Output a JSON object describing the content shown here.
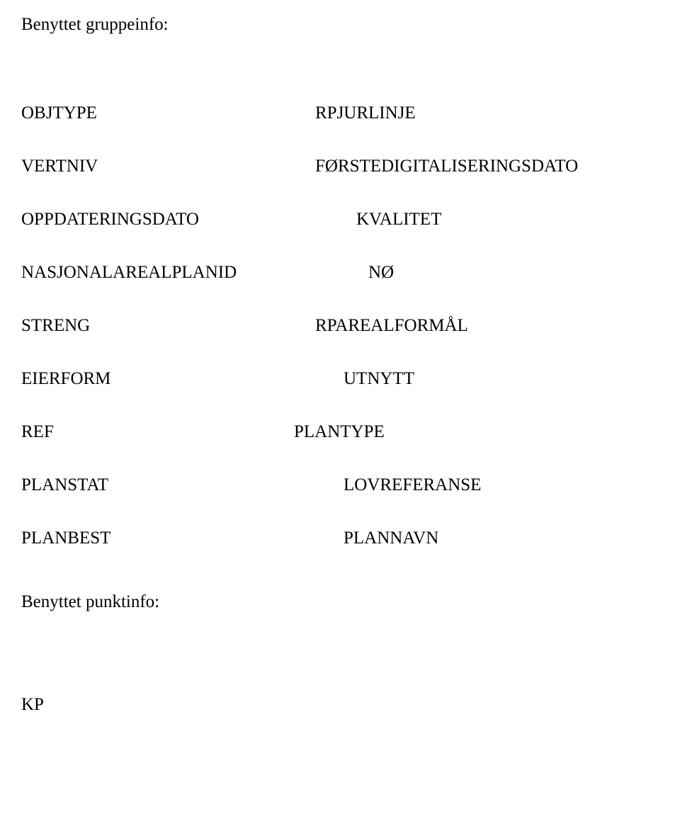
{
  "heading": "Benyttet gruppeinfo:",
  "rows": [
    {
      "left": "OBJTYPE",
      "right": "RPJURLINJE",
      "right_indent": 0
    },
    {
      "left": "VERTNIV",
      "right": "FØRSTEDIGITALISERINGSDATO",
      "right_indent": 0
    },
    {
      "left": "OPPDATERINGSDATO",
      "right": "KVALITET",
      "right_indent": 58
    },
    {
      "left": "NASJONALAREALPLANID",
      "right": "NØ",
      "right_indent": 75
    },
    {
      "left": "STRENG",
      "right": "RPAREALFORMÅL",
      "right_indent": 0
    },
    {
      "left": "EIERFORM",
      "right": "UTNYTT",
      "right_indent": 40
    },
    {
      "left": "REF",
      "right": "PLANTYPE",
      "right_indent": -30
    },
    {
      "left": "PLANSTAT",
      "right": "LOVREFERANSE",
      "right_indent": 40
    },
    {
      "left": "PLANBEST",
      "right": "PLANNAVN",
      "right_indent": 40
    }
  ],
  "subheading": "Benyttet punktinfo:",
  "footer": "KP",
  "style": {
    "font_family": "Times New Roman",
    "font_size_pt": 25,
    "background_color": "#ffffff",
    "text_color": "#000000"
  }
}
